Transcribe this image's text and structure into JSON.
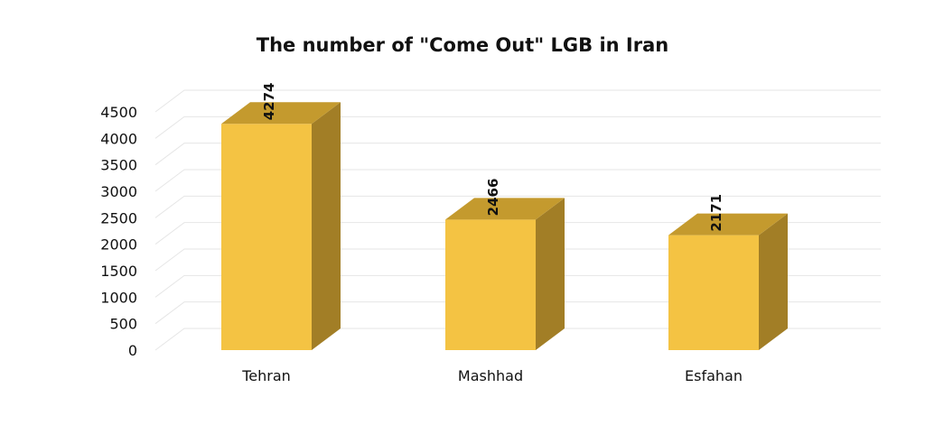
{
  "chart_data": {
    "type": "bar",
    "title": "The number of \"Come Out\" LGB in Iran",
    "categories": [
      "Tehran",
      "Mashhad",
      "Esfahan"
    ],
    "values": [
      4274,
      2466,
      2171
    ],
    "data_labels": [
      "4274",
      "2466",
      "2171"
    ],
    "xlabel": "",
    "ylabel": "",
    "ylim": [
      0,
      4500
    ],
    "yticks": [
      0,
      500,
      1000,
      1500,
      2000,
      2500,
      3000,
      3500,
      4000,
      4500
    ],
    "grid": true,
    "legend": "none",
    "style": "3d-column",
    "colors": {
      "front": "#F4C343",
      "top": "#C49A2E",
      "side": "#A27E26",
      "grid": "#E6E6E6"
    }
  }
}
